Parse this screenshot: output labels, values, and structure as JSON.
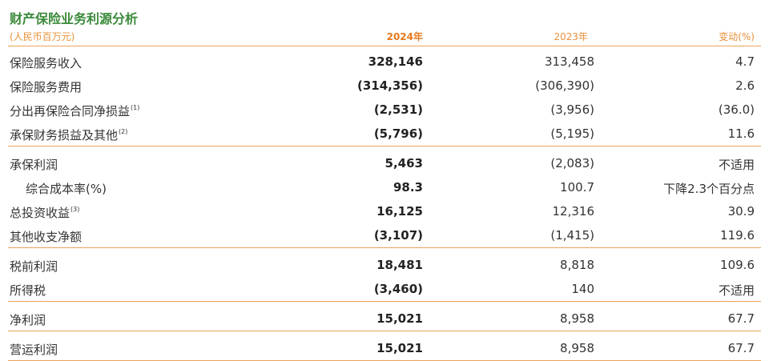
{
  "title": "财产保险业务利源分析",
  "unit": "(人民币百万元)",
  "header": {
    "current": "2024年",
    "previous": "2023年",
    "change": "变动(%)"
  },
  "groups": [
    {
      "rows": [
        {
          "label": "保险服务收入",
          "current": "328,146",
          "previous": "313,458",
          "change": "4.7"
        },
        {
          "label": "保险服务费用",
          "current": "(314,356)",
          "previous": "(306,390)",
          "change": "2.6"
        },
        {
          "label": "分出再保险合同净损益",
          "note": "(1)",
          "current": "(2,531)",
          "previous": "(3,956)",
          "change": "(36.0)"
        },
        {
          "label": "承保财务损益及其他",
          "note": "(2)",
          "current": "(5,796)",
          "previous": "(5,195)",
          "change": "11.6"
        }
      ]
    },
    {
      "rows": [
        {
          "label": "承保利润",
          "current": "5,463",
          "previous": "(2,083)",
          "change": "不适用"
        },
        {
          "label": "综合成本率(%)",
          "indent": true,
          "current": "98.3",
          "previous": "100.7",
          "change": "下降2.3个百分点"
        },
        {
          "label": "总投资收益",
          "note": "(3)",
          "current": "16,125",
          "previous": "12,316",
          "change": "30.9"
        },
        {
          "label": "其他收支净额",
          "current": "(3,107)",
          "previous": "(1,415)",
          "change": "119.6"
        }
      ]
    },
    {
      "rows": [
        {
          "label": "税前利润",
          "current": "18,481",
          "previous": "8,818",
          "change": "109.6"
        },
        {
          "label": "所得税",
          "current": "(3,460)",
          "previous": "140",
          "change": "不适用"
        }
      ]
    },
    {
      "rows": [
        {
          "label": "净利润",
          "current": "15,021",
          "previous": "8,958",
          "change": "67.7"
        }
      ]
    },
    {
      "rows": [
        {
          "label": "营运利润",
          "current": "15,021",
          "previous": "8,958",
          "change": "67.7"
        }
      ]
    }
  ]
}
